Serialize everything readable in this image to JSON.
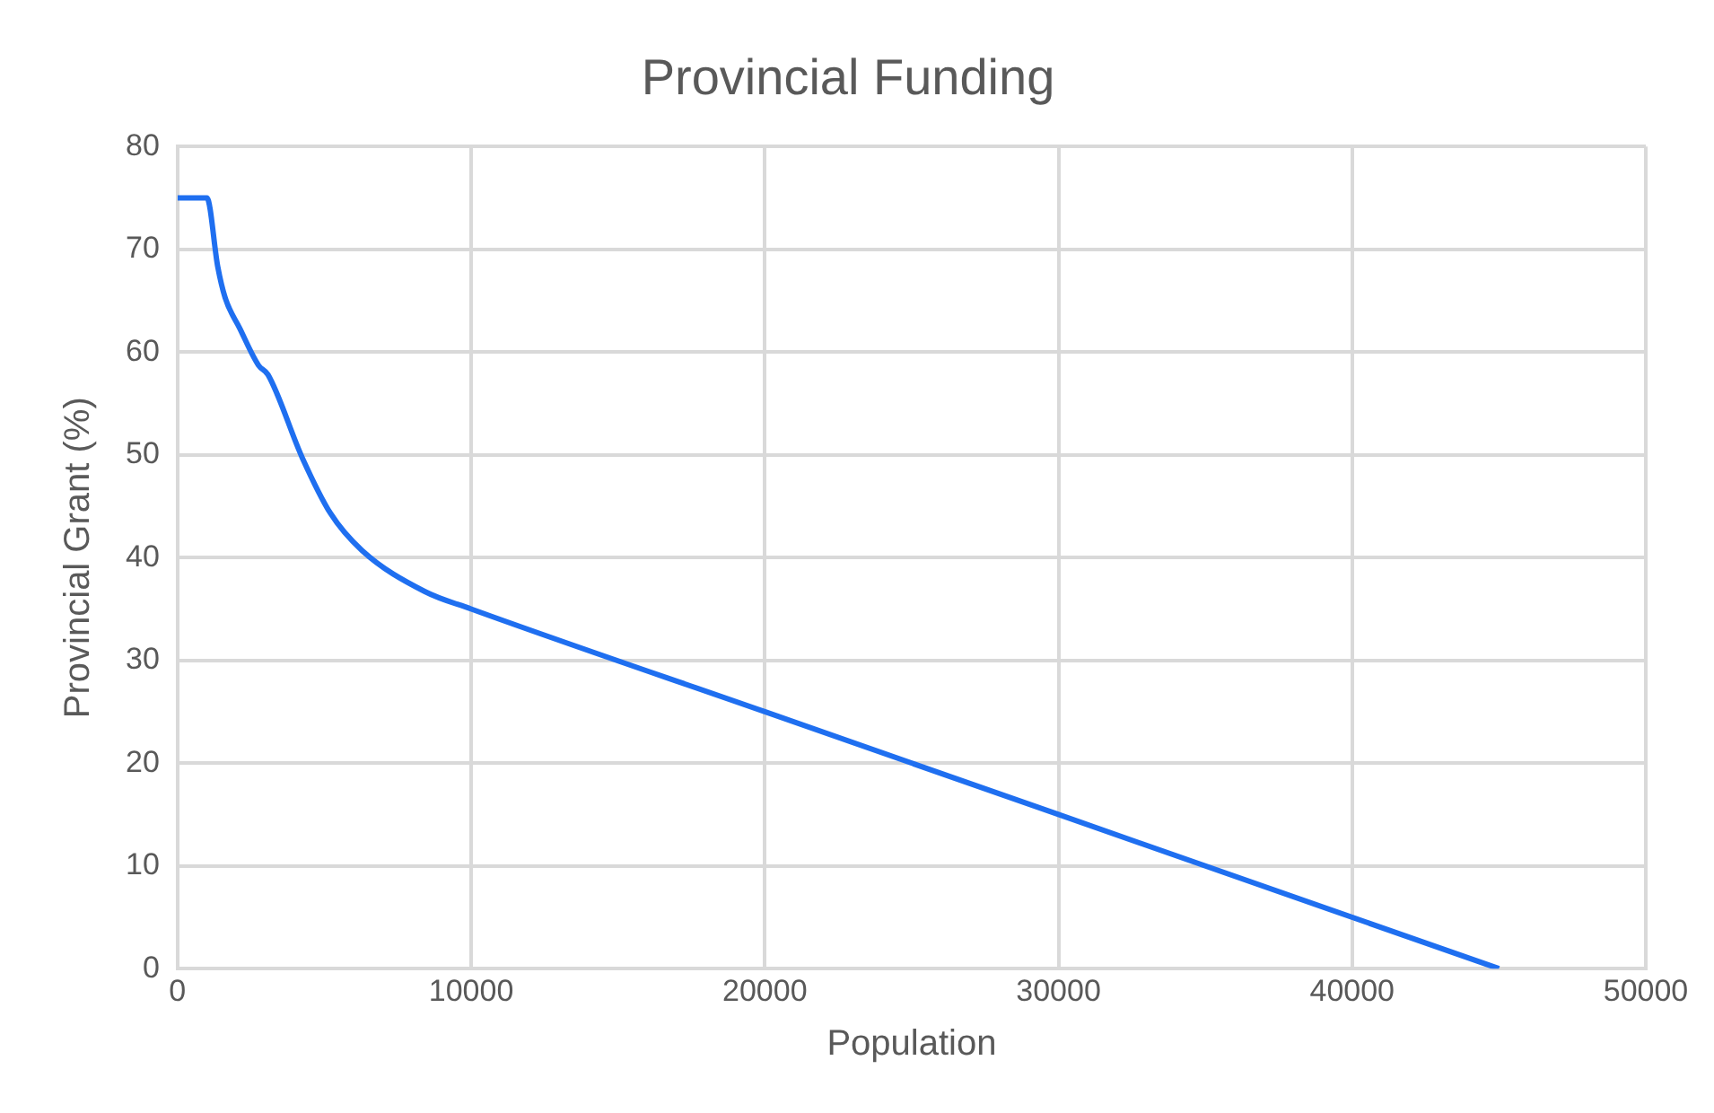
{
  "chart_data": {
    "type": "line",
    "title": "Provincial Funding",
    "xlabel": "Population",
    "ylabel": "Provincial Grant (%)",
    "x": [
      0,
      1000,
      1370,
      1620,
      2120,
      2760,
      3080,
      4250,
      5210,
      6280,
      8420,
      10000,
      20000,
      30000,
      45000
    ],
    "series": [
      {
        "color": "#1f6ff0",
        "values": [
          75,
          75,
          68.3,
          65.3,
          62.3,
          58.7,
          57.8,
          49.7,
          44.3,
          40.7,
          36.7,
          35,
          25,
          15,
          0
        ]
      }
    ],
    "xlim": [
      0,
      50000
    ],
    "xticks": [
      0,
      10000,
      20000,
      30000,
      40000,
      50000
    ],
    "ylim": [
      0,
      80
    ],
    "yticks": [
      0,
      10,
      20,
      30,
      40,
      50,
      60,
      70,
      80
    ],
    "grid": true,
    "legend": false,
    "marker": "none",
    "line_style": "solid"
  }
}
